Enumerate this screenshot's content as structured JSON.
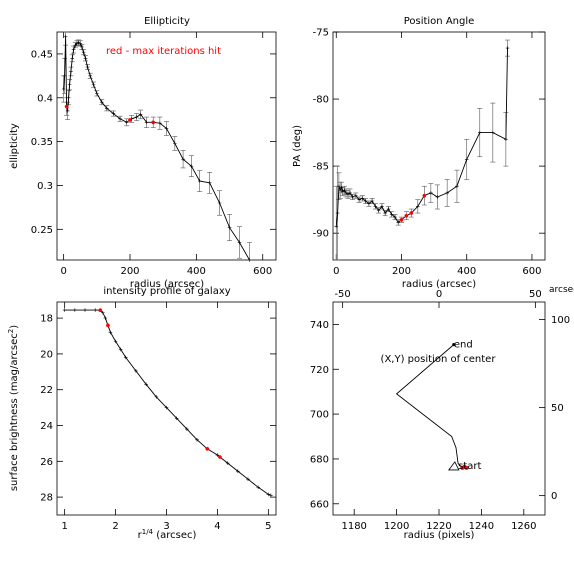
{
  "chart_data": [
    {
      "type": "line",
      "title": "Ellipticity",
      "xlabel": "radius (arcsec)",
      "ylabel": "ellipticity",
      "xlim": [
        -20,
        640
      ],
      "ylim": [
        0.215,
        0.475
      ],
      "xticks": [
        0,
        200,
        400,
        600
      ],
      "yticks": [
        0.25,
        0.3,
        0.35,
        0.4,
        0.45
      ],
      "ytick_labels": [
        "0.25",
        "0.3",
        "0.35",
        "0.4",
        "0.45"
      ],
      "annotation": "red - max iterations hit",
      "annotation_color": "#ff0000",
      "series": [
        {
          "x": [
            0,
            3,
            6,
            9,
            12,
            15,
            18,
            22,
            26,
            30,
            35,
            40,
            45,
            50,
            55,
            60,
            66,
            72,
            80,
            90,
            100,
            115,
            130,
            150,
            170,
            190,
            205,
            220,
            232,
            250,
            270,
            290,
            310,
            335,
            360,
            385,
            410,
            440,
            470,
            500,
            530,
            560
          ],
          "y": [
            0.41,
            0.425,
            0.47,
            0.39,
            0.385,
            0.4,
            0.415,
            0.43,
            0.445,
            0.455,
            0.46,
            0.462,
            0.463,
            0.462,
            0.458,
            0.452,
            0.445,
            0.435,
            0.425,
            0.415,
            0.405,
            0.395,
            0.388,
            0.382,
            0.376,
            0.372,
            0.376,
            0.378,
            0.381,
            0.372,
            0.372,
            0.371,
            0.365,
            0.348,
            0.33,
            0.322,
            0.305,
            0.303,
            0.28,
            0.252,
            0.235,
            0.215
          ],
          "err": [
            0.015,
            0.02,
            0.01,
            0.01,
            0.01,
            0.008,
            0.006,
            0.005,
            0.004,
            0.004,
            0.003,
            0.003,
            0.003,
            0.003,
            0.003,
            0.003,
            0.003,
            0.003,
            0.003,
            0.003,
            0.003,
            0.003,
            0.003,
            0.003,
            0.003,
            0.004,
            0.004,
            0.004,
            0.005,
            0.006,
            0.006,
            0.007,
            0.008,
            0.008,
            0.01,
            0.012,
            0.012,
            0.012,
            0.014,
            0.015,
            0.018,
            0.02
          ],
          "red_x": [
            9,
            200,
            270
          ]
        }
      ]
    },
    {
      "type": "line",
      "title": "Position Angle",
      "xlabel": "radius (arcsec)",
      "ylabel": "PA (deg)",
      "xlim": [
        -10,
        640
      ],
      "ylim": [
        -92,
        -75
      ],
      "xticks": [
        0,
        200,
        400,
        600
      ],
      "yticks": [
        -90,
        -85,
        -80,
        -75
      ],
      "series": [
        {
          "x": [
            0,
            4,
            8,
            12,
            16,
            20,
            25,
            30,
            36,
            42,
            50,
            60,
            70,
            80,
            90,
            100,
            110,
            120,
            130,
            140,
            150,
            160,
            170,
            180,
            190,
            200,
            215,
            230,
            250,
            270,
            290,
            310,
            340,
            370,
            400,
            440,
            480,
            520,
            525
          ],
          "y": [
            -89.5,
            -88.5,
            -86.5,
            -86.8,
            -86.6,
            -86.9,
            -86.8,
            -87.0,
            -87.1,
            -87.0,
            -87.3,
            -87.2,
            -87.5,
            -87.4,
            -87.6,
            -87.8,
            -87.6,
            -88.0,
            -88.3,
            -88.0,
            -88.5,
            -88.2,
            -88.6,
            -88.8,
            -89.2,
            -89.0,
            -88.7,
            -88.5,
            -88.0,
            -87.2,
            -87.0,
            -87.3,
            -87.0,
            -86.5,
            -84.5,
            -82.5,
            -82.5,
            -83.0,
            -76.2
          ],
          "err": [
            3,
            3.5,
            1,
            0.6,
            0.4,
            0.3,
            0.3,
            0.3,
            0.3,
            0.3,
            0.2,
            0.2,
            0.2,
            0.2,
            0.2,
            0.2,
            0.2,
            0.2,
            0.2,
            0.2,
            0.2,
            0.2,
            0.2,
            0.2,
            0.2,
            0.2,
            0.3,
            0.3,
            0.5,
            0.7,
            0.7,
            0.9,
            1.0,
            1.2,
            1.5,
            1.8,
            2.2,
            2.0,
            0.6
          ],
          "red_x": [
            200,
            215,
            230,
            270
          ]
        }
      ]
    },
    {
      "type": "line",
      "title": "intensity profile of galaxy",
      "xlabel": "r",
      "xlabel_sup": "1/4",
      "xlabel_unit": "(arcsec)",
      "ylabel": "surface brightness (mag/arcsec",
      "ylabel_sup": "2",
      "ylabel_end": ")",
      "xlim": [
        0.85,
        5.15
      ],
      "ylim": [
        29.0,
        17.1
      ],
      "xticks": [
        1,
        2,
        3,
        4,
        5
      ],
      "yticks": [
        18,
        20,
        22,
        24,
        26,
        28
      ],
      "series": [
        {
          "x": [
            1.0,
            1.2,
            1.4,
            1.6,
            1.7,
            1.75,
            1.8,
            1.85,
            1.9,
            2.0,
            2.1,
            2.2,
            2.4,
            2.6,
            2.8,
            3.0,
            3.2,
            3.4,
            3.6,
            3.8,
            4.0,
            4.2,
            4.4,
            4.6,
            4.8,
            5.0,
            5.05
          ],
          "y": [
            17.55,
            17.55,
            17.55,
            17.55,
            17.56,
            17.7,
            18.0,
            18.4,
            18.8,
            19.3,
            19.75,
            20.2,
            20.95,
            21.7,
            22.4,
            23.0,
            23.6,
            24.2,
            24.8,
            25.3,
            25.65,
            26.1,
            26.55,
            27.0,
            27.45,
            27.85,
            27.9
          ],
          "red_x": [
            1.7,
            1.85,
            3.8,
            4.05
          ]
        }
      ]
    },
    {
      "type": "line",
      "title": "(X,Y) position of center",
      "xlabel": "radius (pixels)",
      "xlim": [
        1170,
        1270
      ],
      "ylim": [
        655,
        750
      ],
      "xticks": [
        1180,
        1200,
        1220,
        1240,
        1260
      ],
      "yticks": [
        660,
        680,
        700,
        720,
        740
      ],
      "top_xlim": [
        -55,
        55
      ],
      "top_xticks": [
        -50,
        0,
        50
      ],
      "top_unit": "arcsec",
      "right_ylim": [
        -11,
        110
      ],
      "right_yticks": [
        0,
        50,
        100
      ],
      "start_label": "start",
      "end_label": "end",
      "series": [
        {
          "x": [
            1232,
            1230,
            1229,
            1228,
            1226,
            1200,
            1227
          ],
          "y": [
            676,
            677,
            678,
            685,
            690,
            709,
            731
          ],
          "red_x": [
            1231,
            1232,
            1233
          ]
        }
      ]
    }
  ]
}
